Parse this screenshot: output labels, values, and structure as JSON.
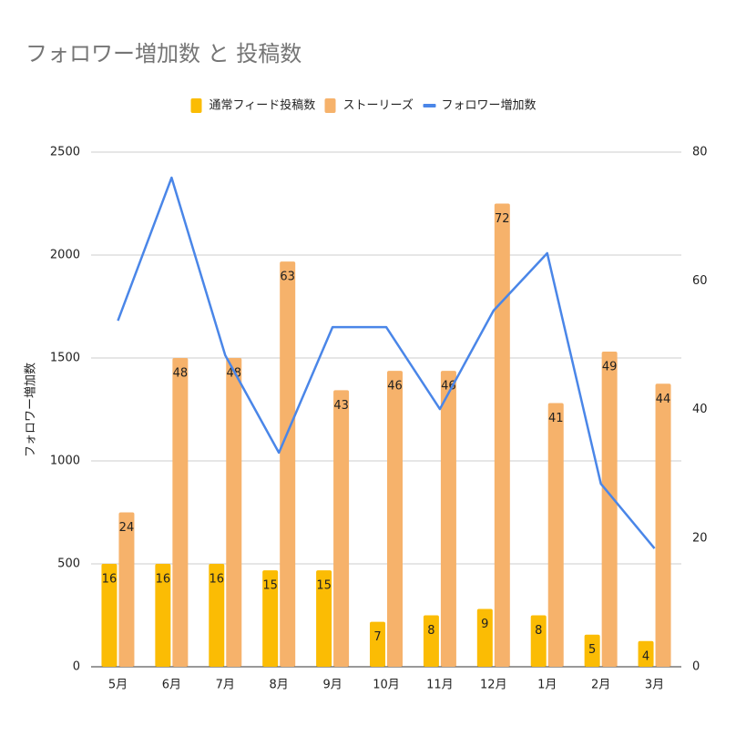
{
  "chart_data": {
    "type": "combo",
    "title": "フォロワー増加数 と 投稿数",
    "y_label": "フォロワー増加数",
    "categories": [
      "5月",
      "6月",
      "7月",
      "8月",
      "9月",
      "10月",
      "11月",
      "12月",
      "1月",
      "2月",
      "3月"
    ],
    "series": [
      {
        "name": "通常フィード投稿数",
        "type": "bar",
        "axis": "y2",
        "color": "#fbbc04",
        "values": [
          16,
          16,
          16,
          15,
          15,
          7,
          8,
          9,
          8,
          5,
          4
        ]
      },
      {
        "name": "ストーリーズ",
        "type": "bar",
        "axis": "y2",
        "color": "#f6b26b",
        "values": [
          24,
          48,
          48,
          63,
          43,
          46,
          46,
          72,
          41,
          49,
          44
        ]
      },
      {
        "name": "フォロワー増加数",
        "type": "line",
        "axis": "y",
        "color": "#4a86e8",
        "values": [
          1681,
          2376,
          1513,
          1040,
          1650,
          1650,
          1252,
          1730,
          2009,
          889,
          575
        ]
      }
    ],
    "ylim": [
      0,
      2500
    ],
    "yticks": [
      0,
      500,
      1000,
      1500,
      2000,
      2500
    ],
    "y2lim": [
      0,
      80
    ],
    "y2ticks": [
      0,
      20,
      40,
      60,
      80
    ],
    "grid": true,
    "legend": "top"
  }
}
